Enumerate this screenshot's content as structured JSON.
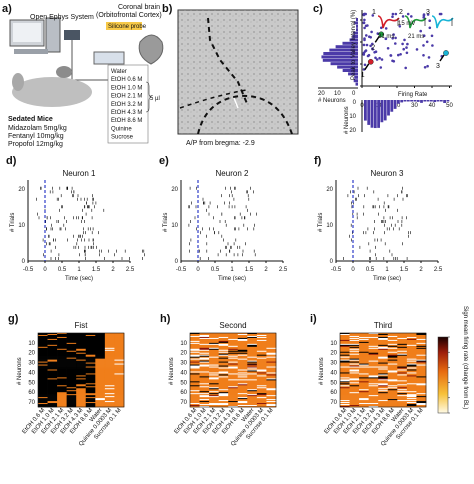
{
  "panel_a": {
    "letter": "a)",
    "system_label": "Open Ephys System",
    "mice_label": "Sedated Mice",
    "drugs": [
      "Midazolam 5mg/kg",
      "Fentanyl 10mg/kg",
      "Propofol 12mg/kg"
    ],
    "solutions": [
      "Water",
      "EtOH 0.6 M",
      "EtOH 1.0 M",
      "EtOH 2.1 M",
      "EtOH 3.2 M",
      "EtOH 4.3 M",
      "EtOH 8.6 M",
      "Quinine",
      "Sucrose"
    ],
    "volume_label": "5 µl",
    "coronal_label": "Coronal brain",
    "cortex_label": "(Orbitofrontal Cortex)",
    "probe_label": "Silicone probe"
  },
  "panel_b": {
    "letter": "b)",
    "caption": "A/P from bregma: -2.9"
  },
  "panel_c": {
    "letter": "c)",
    "ylabel": "Peak to Valley Interval (%)",
    "xlabel": "Firing Rate",
    "hist_left_label": "# Neurons",
    "hist_bottom_label": "# Neurons",
    "hist_left_ticks": [
      "20",
      "10",
      "0"
    ],
    "x_ticks": [
      "0",
      "10",
      "20",
      "30",
      "40",
      "50"
    ],
    "y_ticks": [
      "0",
      "0.2",
      "0.4",
      "0.6"
    ],
    "hist_bottom_ticks": [
      "0",
      "10",
      "20"
    ],
    "waveform_labels": [
      "1",
      "2",
      "3"
    ],
    "waveform_scale_v": "15 mV",
    "waveform_scale_t": "21 ms",
    "marker_labels": [
      "1",
      "2",
      "3"
    ],
    "colors": {
      "purple": "#4b3aa8",
      "red": "#d21f2a",
      "green": "#1f9a3a",
      "cyan": "#19b4d6"
    }
  },
  "raster": {
    "xlabel": "Time (sec)",
    "ylabel": "# Trials",
    "x_ticks": [
      "-0.5",
      "0",
      "0.5",
      "1",
      "1.5",
      "2",
      "2.5"
    ],
    "y_ticks": [
      "0",
      "10",
      "20"
    ],
    "panels": [
      {
        "letter": "d)",
        "title": "Neuron 1"
      },
      {
        "letter": "e)",
        "title": "Neuron 2"
      },
      {
        "letter": "f)",
        "title": "Neuron 3"
      }
    ]
  },
  "heat": {
    "ylabel": "# Neurons",
    "y_ticks": [
      "10",
      "20",
      "30",
      "40",
      "50",
      "60",
      "70"
    ],
    "categories": [
      "EtOH 0.6 M",
      "EtOH 1.0 M",
      "EtOH 2.1 M",
      "EtOH 3.2 M",
      "EtOH 4.3 M",
      "EtOH 8.6 M",
      "Water",
      "Quinine 0.0003 M",
      "Sucrose 0.1 M"
    ],
    "panels": [
      {
        "letter": "g)",
        "title": "Fist"
      },
      {
        "letter": "h)",
        "title": "Second"
      },
      {
        "letter": "i)",
        "title": "Third"
      }
    ],
    "colorbar_label": "Sign mean firing rate (change from BL)",
    "colorbar_ticks": [
      "1",
      "0.8",
      "0.6",
      "0.4",
      "0.2",
      "0"
    ]
  }
}
